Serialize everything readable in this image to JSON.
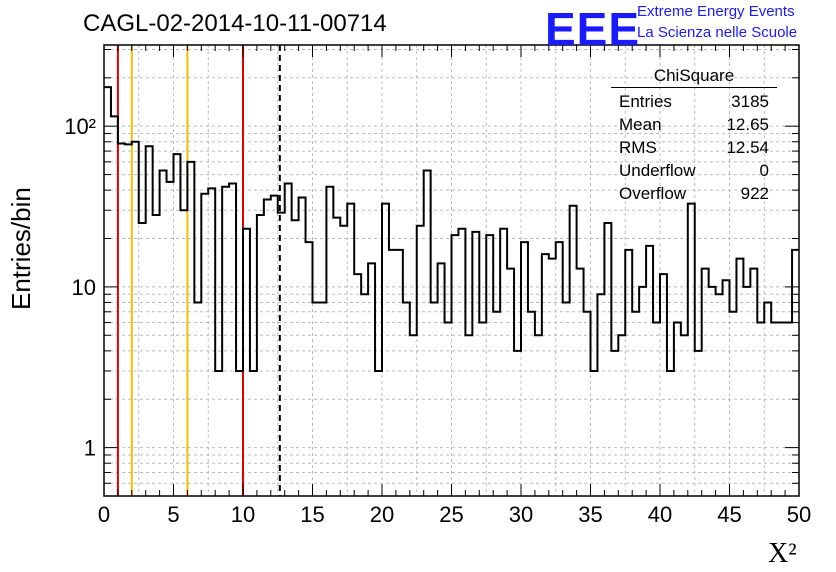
{
  "header": {
    "title": "CAGL-02-2014-10-11-00714",
    "logo": "EEE",
    "logo_line1": "Extreme Energy Events",
    "logo_line2": "La Scienza nelle Scuole"
  },
  "stats": {
    "title": "ChiSquare",
    "rows": [
      {
        "label": "Entries",
        "value": "3185"
      },
      {
        "label": "Mean",
        "value": "12.65"
      },
      {
        "label": "RMS",
        "value": "12.54"
      },
      {
        "label": "Underflow",
        "value": "0"
      },
      {
        "label": "Overflow",
        "value": "922"
      }
    ]
  },
  "colors": {
    "red_line": "#e00000",
    "yellow_line": "#f0c000",
    "histogram": "#000000",
    "logo": "#1a1aff"
  },
  "chart_data": {
    "type": "histogram",
    "title": "CAGL-02-2014-10-11-00714",
    "xlabel": "X²",
    "ylabel": "Entries/bin",
    "xlim": [
      0,
      50
    ],
    "ylim": [
      0.5,
      320
    ],
    "yscale": "log",
    "grid": true,
    "bin_width": 0.5,
    "x_ticks": [
      "0",
      "5",
      "10",
      "15",
      "20",
      "25",
      "30",
      "35",
      "40",
      "45",
      "50"
    ],
    "y_ticks": [
      {
        "value": 1,
        "label": "1"
      },
      {
        "value": 10,
        "label": "10"
      },
      {
        "value": 100,
        "label": "10²"
      }
    ],
    "counts": [
      175,
      115,
      78,
      77,
      80,
      25,
      75,
      28,
      53,
      45,
      67,
      30,
      60,
      8,
      38,
      41,
      3,
      42,
      44,
      3,
      23,
      3,
      28,
      35,
      37,
      29,
      44,
      26,
      36,
      19,
      8,
      8,
      42,
      27,
      24,
      33,
      12,
      9,
      14,
      3,
      33,
      17,
      17,
      8,
      5,
      24,
      53,
      8,
      14,
      6,
      21,
      23,
      5,
      22,
      6,
      21,
      7,
      23,
      13,
      4,
      19,
      7,
      5,
      16,
      15,
      19,
      8,
      32,
      13,
      7,
      3,
      9,
      25,
      4,
      5,
      17,
      7,
      10,
      18,
      6,
      12,
      3,
      6,
      5,
      33,
      4,
      13,
      10,
      9,
      11,
      7,
      15,
      10,
      13,
      6,
      8,
      6,
      6,
      6,
      17
    ],
    "clipped_bins": [
      57,
      73,
      89
    ],
    "vertical_lines": [
      {
        "x": 1,
        "color": "red",
        "style": "solid"
      },
      {
        "x": 2,
        "color": "yellow",
        "style": "solid"
      },
      {
        "x": 6,
        "color": "yellow",
        "style": "solid"
      },
      {
        "x": 10,
        "color": "red",
        "style": "solid"
      },
      {
        "x": 12.65,
        "color": "black",
        "style": "dashed"
      }
    ]
  }
}
